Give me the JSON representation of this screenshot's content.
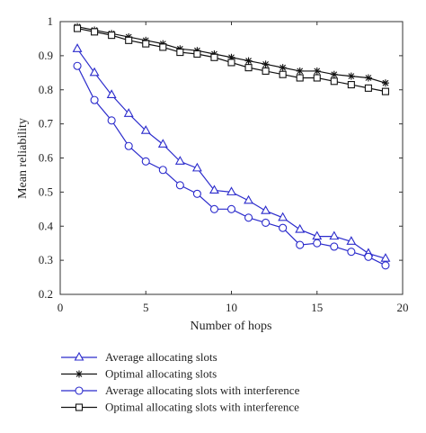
{
  "chart_data": {
    "type": "line",
    "xlabel": "Number of hops",
    "ylabel": "Mean reliability",
    "xlim": [
      0,
      20
    ],
    "ylim": [
      0.2,
      1.0
    ],
    "xticks": [
      0,
      5,
      10,
      15,
      20
    ],
    "yticks": [
      0.2,
      0.3,
      0.4,
      0.5,
      0.6,
      0.7,
      0.8,
      0.9,
      1.0
    ],
    "grid": false,
    "legend_position": "bottom",
    "x": [
      1,
      2,
      3,
      4,
      5,
      6,
      7,
      8,
      9,
      10,
      11,
      12,
      13,
      14,
      15,
      16,
      17,
      18,
      19
    ],
    "series": [
      {
        "name": "Average allocating slots",
        "marker": "triangle",
        "color": "#2b2bcc",
        "values": [
          0.92,
          0.85,
          0.785,
          0.73,
          0.68,
          0.64,
          0.59,
          0.57,
          0.505,
          0.5,
          0.475,
          0.445,
          0.425,
          0.39,
          0.37,
          0.37,
          0.355,
          0.32,
          0.305
        ]
      },
      {
        "name": "Optimal allocating slots",
        "marker": "star",
        "color": "#111111",
        "values": [
          0.985,
          0.975,
          0.965,
          0.955,
          0.945,
          0.935,
          0.92,
          0.915,
          0.905,
          0.895,
          0.885,
          0.875,
          0.865,
          0.855,
          0.855,
          0.845,
          0.84,
          0.835,
          0.82
        ]
      },
      {
        "name": "Average allocating slots with interference",
        "marker": "circle",
        "color": "#2b2bcc",
        "values": [
          0.87,
          0.77,
          0.71,
          0.635,
          0.59,
          0.565,
          0.52,
          0.495,
          0.45,
          0.45,
          0.425,
          0.41,
          0.395,
          0.345,
          0.35,
          0.34,
          0.325,
          0.31,
          0.285
        ]
      },
      {
        "name": "Optimal allocating slots with interference",
        "marker": "square",
        "color": "#111111",
        "values": [
          0.98,
          0.97,
          0.96,
          0.945,
          0.935,
          0.925,
          0.91,
          0.905,
          0.895,
          0.88,
          0.865,
          0.855,
          0.845,
          0.835,
          0.835,
          0.825,
          0.815,
          0.805,
          0.795
        ]
      }
    ]
  }
}
